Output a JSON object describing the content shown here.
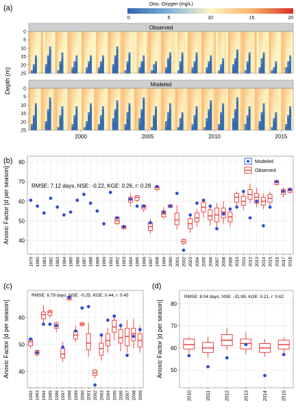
{
  "colors": {
    "modeled": "#2f4bd6",
    "observed": "#e5322d",
    "strip_bg": "#cfcfcf",
    "panel_border": "#7f7f7f",
    "grid": "#e9e9e9",
    "heat_low": "#2f65ad",
    "heat_mid": "#fdf5c4",
    "heat_high": "#d73027"
  },
  "chart_data": [
    {
      "id": "a",
      "type": "heatmap",
      "panel_label": "(a)",
      "colorbar": {
        "title": "Diss. Oxygen (mg/L)",
        "range": [
          0,
          20
        ],
        "ticks": [
          "0",
          "5",
          "10",
          "15",
          "20"
        ]
      },
      "ylabel": "Depth (m)",
      "ylim": [
        0,
        25
      ],
      "yticks": [
        "0",
        "5",
        "10",
        "15",
        "20",
        "25"
      ],
      "xlim": [
        1996.1,
        2015.9
      ],
      "xticks": [
        "2000",
        "2005",
        "2010",
        "2015"
      ],
      "facets": [
        {
          "title": "Observed"
        },
        {
          "title": "Modeled"
        }
      ]
    },
    {
      "id": "b",
      "type": "box",
      "panel_label": "(b)",
      "ylabel": "Anoxic Factor [d per season]",
      "ylim": [
        33,
        83
      ],
      "yticks": [
        40,
        50,
        60,
        70,
        80
      ],
      "metrics": "RMSE: 7.12 days, NSE: -0.22, KGE: 0.26, r: 0.28",
      "legend": {
        "position": "top-right",
        "items": [
          "Modeled",
          "Observed"
        ]
      },
      "categories": [
        "1979",
        "1980",
        "1981",
        "1982",
        "1983",
        "1984",
        "1985",
        "1986",
        "1987",
        "1988",
        "1989",
        "1990",
        "1991",
        "1992",
        "1993",
        "1994",
        "1995",
        "1996",
        "1997",
        "1998",
        "1999",
        "2000",
        "2001",
        "2002",
        "2003",
        "2004",
        "2005",
        "2006",
        "2007",
        "2008",
        "2009",
        "2010",
        "2011",
        "2012",
        "2013",
        "2014",
        "2015",
        "2016",
        "2017",
        "2018"
      ],
      "series": [
        {
          "name": "Modeled",
          "values": [
            60.5,
            57.5,
            54,
            61.5,
            57,
            53,
            54.5,
            60.5,
            63.5,
            59,
            55,
            48.5,
            64.5,
            51.5,
            47,
            61,
            57.5,
            57.5,
            49,
            67.5,
            54.5,
            57.5,
            64,
            35,
            53,
            59,
            60.5,
            57.5,
            46,
            53.5,
            56,
            57,
            65,
            51.5,
            60,
            47.5,
            57,
            70,
            65,
            66
          ]
        },
        {
          "name": "Observed",
          "boxes": [
            null,
            null,
            null,
            null,
            null,
            null,
            null,
            null,
            null,
            null,
            null,
            null,
            null,
            {
              "q1": 48.5,
              "med": 50,
              "q3": 52,
              "lo": 48,
              "hi": 52
            },
            {
              "q1": 46,
              "med": 47,
              "q3": 47.5,
              "lo": 45.5,
              "hi": 48
            },
            {
              "q1": 59.5,
              "med": 61,
              "q3": 62,
              "lo": 57.5,
              "hi": 64
            },
            {
              "q1": 60.5,
              "med": 62,
              "q3": 62.8,
              "lo": 59.5,
              "hi": 63
            },
            {
              "q1": 56,
              "med": 57,
              "q3": 58,
              "lo": 54.5,
              "hi": 58.5
            },
            {
              "q1": 45,
              "med": 47,
              "q3": 49,
              "lo": 43.5,
              "hi": 51
            },
            {
              "q1": 66,
              "med": 67,
              "q3": 67.5,
              "lo": 65,
              "hi": 68
            },
            {
              "q1": 52,
              "med": 53.5,
              "q3": 55,
              "lo": 51,
              "hi": 57
            },
            {
              "q1": 56.8,
              "med": 57.5,
              "q3": 58.2,
              "lo": 56.5,
              "hi": 58.5
            },
            {
              "q1": 48,
              "med": 50.5,
              "q3": 54,
              "lo": 45.5,
              "hi": 58
            },
            {
              "q1": 38.5,
              "med": 39.5,
              "q3": 40.5,
              "lo": 37.5,
              "hi": 41
            },
            {
              "q1": 46,
              "med": 48.5,
              "q3": 51,
              "lo": 44,
              "hi": 53
            },
            {
              "q1": 49.5,
              "med": 51.5,
              "q3": 54,
              "lo": 47,
              "hi": 56
            },
            {
              "q1": 54.5,
              "med": 57,
              "q3": 59.5,
              "lo": 51.5,
              "hi": 61
            },
            {
              "q1": 50.5,
              "med": 52.5,
              "q3": 55.5,
              "lo": 47.5,
              "hi": 58
            },
            {
              "q1": 49.5,
              "med": 53,
              "q3": 56.5,
              "lo": 47,
              "hi": 59
            },
            {
              "q1": 51.5,
              "med": 54.5,
              "q3": 56.5,
              "lo": 48.5,
              "hi": 60
            },
            {
              "q1": 49.5,
              "med": 52,
              "q3": 54.5,
              "lo": 47,
              "hi": 57
            },
            {
              "q1": 59.5,
              "med": 62,
              "q3": 64,
              "lo": 57.5,
              "hi": 65
            },
            {
              "q1": 58,
              "med": 60,
              "q3": 62.5,
              "lo": 55.5,
              "hi": 65
            },
            {
              "q1": 61,
              "med": 63.5,
              "q3": 66,
              "lo": 59,
              "hi": 69
            },
            {
              "q1": 59,
              "med": 62,
              "q3": 64,
              "lo": 57,
              "hi": 67
            },
            {
              "q1": 58,
              "med": 60,
              "q3": 62,
              "lo": 56,
              "hi": 64
            },
            {
              "q1": 59.5,
              "med": 61.5,
              "q3": 63.5,
              "lo": 57,
              "hi": 65
            },
            {
              "q1": 68.5,
              "med": 69.5,
              "q3": 70.5,
              "lo": 68,
              "hi": 71
            },
            {
              "q1": 63.5,
              "med": 65,
              "q3": 66,
              "lo": 62,
              "hi": 67
            },
            {
              "q1": 64.5,
              "med": 65.5,
              "q3": 66.5,
              "lo": 64,
              "hi": 67
            }
          ]
        }
      ]
    },
    {
      "id": "c",
      "type": "box",
      "panel_label": "(c)",
      "ylabel": "Anoxic Factor [d per season]",
      "ylim": [
        34,
        70
      ],
      "yticks": [
        40,
        50,
        60
      ],
      "metrics": "RMSE: 6.79 days, NSE: -0.25, KGE: 0.44, r: 0.45",
      "categories": [
        "1992",
        "1993",
        "1994",
        "1995",
        "1996",
        "1997",
        "1998",
        "1999",
        "2000",
        "2001",
        "2002",
        "2003",
        "2004",
        "2005",
        "2006",
        "2007",
        "2008",
        "2009"
      ],
      "series": [
        {
          "name": "Modeled",
          "values": [
            52,
            47,
            57.5,
            57.5,
            57,
            49,
            67.5,
            55,
            63.5,
            64,
            35,
            53.5,
            59,
            60.5,
            57,
            46,
            53,
            55.5
          ]
        },
        {
          "name": "Observed",
          "boxes": [
            {
              "q1": 49.5,
              "med": 51,
              "q3": 52,
              "lo": 48.5,
              "hi": 52.5
            },
            {
              "q1": 46.2,
              "med": 47,
              "q3": 47.8,
              "lo": 45.5,
              "hi": 48
            },
            {
              "q1": 59.5,
              "med": 61,
              "q3": 62,
              "lo": 58,
              "hi": 64.5
            },
            {
              "q1": 60.8,
              "med": 62,
              "q3": 62.5,
              "lo": 60,
              "hi": 63
            },
            {
              "q1": 56,
              "med": 57,
              "q3": 58,
              "lo": 54.5,
              "hi": 58.5
            },
            {
              "q1": 45,
              "med": 46.5,
              "q3": 48.5,
              "lo": 43.5,
              "hi": 51
            },
            {
              "q1": 66.5,
              "med": 67,
              "q3": 67.5,
              "lo": 66,
              "hi": 68
            },
            {
              "q1": 52,
              "med": 53.5,
              "q3": 55,
              "lo": 51,
              "hi": 57
            },
            {
              "q1": 57,
              "med": 57.5,
              "q3": 58,
              "lo": 56.5,
              "hi": 58.5
            },
            {
              "q1": 48,
              "med": 50.5,
              "q3": 54,
              "lo": 45.5,
              "hi": 58
            },
            {
              "q1": 38.5,
              "med": 39.5,
              "q3": 40.5,
              "lo": 37.5,
              "hi": 41
            },
            {
              "q1": 46,
              "med": 48.5,
              "q3": 50.5,
              "lo": 44,
              "hi": 53
            },
            {
              "q1": 49.5,
              "med": 51.5,
              "q3": 54,
              "lo": 47,
              "hi": 56
            },
            {
              "q1": 54.5,
              "med": 56.5,
              "q3": 59,
              "lo": 51.5,
              "hi": 61
            },
            {
              "q1": 50.5,
              "med": 52.5,
              "q3": 55.5,
              "lo": 47.5,
              "hi": 58
            },
            {
              "q1": 49.5,
              "med": 53,
              "q3": 56,
              "lo": 47,
              "hi": 59
            },
            {
              "q1": 51.5,
              "med": 54,
              "q3": 56,
              "lo": 48.5,
              "hi": 59.5
            },
            {
              "q1": 49,
              "med": 51.5,
              "q3": 54,
              "lo": 47,
              "hi": 57
            }
          ]
        }
      ]
    },
    {
      "id": "d",
      "type": "box",
      "panel_label": "(d)",
      "ylabel": "Anoxic Factor [d per season]",
      "ylim": [
        42,
        86
      ],
      "yticks": [
        50,
        60,
        70,
        80
      ],
      "metrics": "RMSE: 8.04 days, NSE: -31.99, KGE: 0.21, r: 0.62",
      "categories": [
        "2010",
        "2011",
        "2012",
        "2013",
        "2014",
        "2015"
      ],
      "series": [
        {
          "name": "Modeled",
          "values": [
            56.5,
            51.5,
            55.5,
            61.5,
            47.5,
            57
          ]
        },
        {
          "name": "Observed",
          "boxes": [
            {
              "q1": 59.5,
              "med": 61.5,
              "q3": 64,
              "lo": 57.5,
              "hi": 65
            },
            {
              "q1": 58,
              "med": 60,
              "q3": 62.5,
              "lo": 55.5,
              "hi": 65
            },
            {
              "q1": 61,
              "med": 63.5,
              "q3": 66,
              "lo": 59,
              "hi": 69
            },
            {
              "q1": 59.5,
              "med": 62,
              "q3": 64,
              "lo": 57,
              "hi": 67
            },
            {
              "q1": 58,
              "med": 60,
              "q3": 62,
              "lo": 56,
              "hi": 64
            },
            {
              "q1": 59.5,
              "med": 61.5,
              "q3": 63.5,
              "lo": 57,
              "hi": 65
            }
          ]
        }
      ]
    }
  ]
}
